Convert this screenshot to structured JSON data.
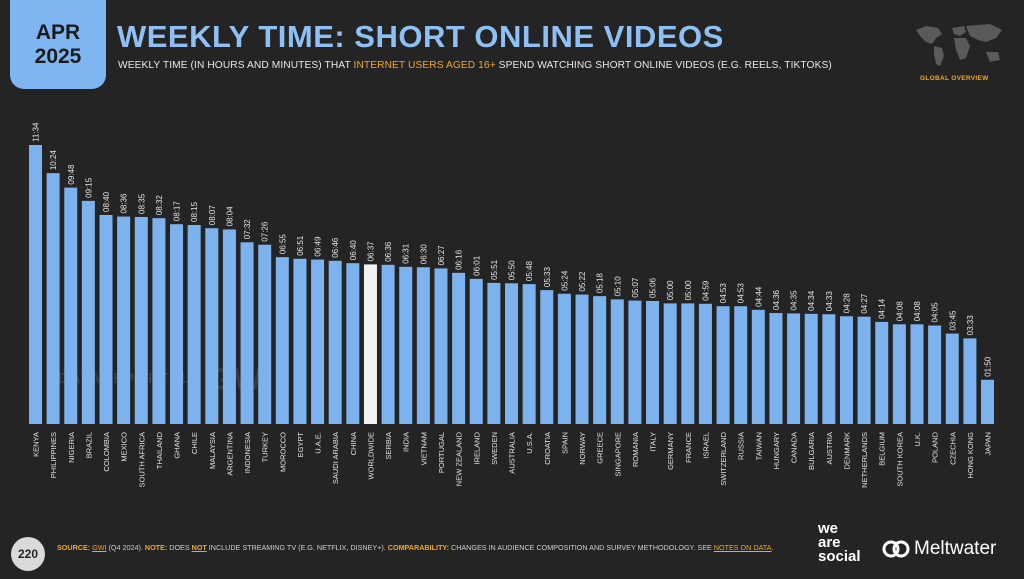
{
  "header": {
    "badge_month": "APR",
    "badge_year": "2025",
    "title": "WEEKLY TIME: SHORT ONLINE VIDEOS",
    "subtitle_pre": "WEEKLY TIME (IN HOURS AND MINUTES) THAT ",
    "subtitle_highlight": "INTERNET USERS AGED 16+",
    "subtitle_post": " SPEND WATCHING SHORT ONLINE VIDEOS (E.G. REELS, TIKTOKS)",
    "global_overview": "GLOBAL OVERVIEW"
  },
  "watermark": {
    "left": "DATAREPORTAL",
    "right": "GWI."
  },
  "footer": {
    "page_number": "220",
    "source_label": "SOURCE:",
    "source_link": "GWI",
    "source_text": " (Q4 2024). ",
    "note_label": "NOTE:",
    "note_pre": " DOES ",
    "note_not": "NOT",
    "note_post": " INCLUDE STREAMING TV (E.G. NETFLIX, DISNEY+). ",
    "comparability_label": "COMPARABILITY:",
    "comparability_text": " CHANGES IN AUDIENCE COMPOSITION AND SURVEY METHODOLOGY. SEE ",
    "notes_link": "NOTES ON DATA",
    "end": "."
  },
  "brands": {
    "wearesocial": [
      "we",
      "are",
      "social"
    ],
    "meltwater": "Meltwater"
  },
  "colors": {
    "bar": "#7cb3ef",
    "highlight_bar": "#f2f2f2",
    "accent": "#f5a623",
    "title": "#8fc0f5"
  },
  "chart_data": {
    "type": "bar",
    "highlight_category": "WORLDWIDE",
    "categories": [
      "KENYA",
      "PHILIPPINES",
      "NIGERIA",
      "BRAZIL",
      "COLOMBIA",
      "MEXICO",
      "SOUTH AFRICA",
      "THAILAND",
      "GHANA",
      "CHILE",
      "MALAYSIA",
      "ARGENTINA",
      "INDONESIA",
      "TURKEY",
      "MOROCCO",
      "EGYPT",
      "U.A.E.",
      "SAUDI ARABIA",
      "CHINA",
      "WORLDWIDE",
      "SERBIA",
      "INDIA",
      "VIETNAM",
      "PORTUGAL",
      "NEW ZEALAND",
      "IRELAND",
      "SWEDEN",
      "AUSTRALIA",
      "U.S.A.",
      "CROATIA",
      "SPAIN",
      "NORWAY",
      "GREECE",
      "SINGAPORE",
      "ROMANIA",
      "ITALY",
      "GERMANY",
      "FRANCE",
      "ISRAEL",
      "SWITZERLAND",
      "RUSSIA",
      "TAIWAN",
      "HUNGARY",
      "CANADA",
      "BULGARIA",
      "AUSTRIA",
      "DENMARK",
      "NETHERLANDS",
      "BELGIUM",
      "SOUTH KOREA",
      "U.K.",
      "POLAND",
      "CZECHIA",
      "HONG KONG",
      "JAPAN"
    ],
    "labels": [
      "11:34",
      "10:24",
      "09:48",
      "09:15",
      "08:40",
      "08:36",
      "08:35",
      "08:32",
      "08:17",
      "08:15",
      "08:07",
      "08:04",
      "07:32",
      "07:26",
      "06:55",
      "06:51",
      "06:49",
      "06:46",
      "06:40",
      "06:37",
      "06:36",
      "06:31",
      "06:30",
      "06:27",
      "06:16",
      "06:01",
      "05:51",
      "05:50",
      "05:48",
      "05:33",
      "05:24",
      "05:22",
      "05:18",
      "05:10",
      "05:07",
      "05:06",
      "05:00",
      "05:00",
      "04:59",
      "04:53",
      "04:53",
      "04:44",
      "04:36",
      "04:35",
      "04:34",
      "04:33",
      "04:28",
      "04:27",
      "04:14",
      "04:08",
      "04:08",
      "04:05",
      "03:45",
      "03:33",
      "01:50"
    ],
    "ylim": [
      0,
      694
    ]
  }
}
